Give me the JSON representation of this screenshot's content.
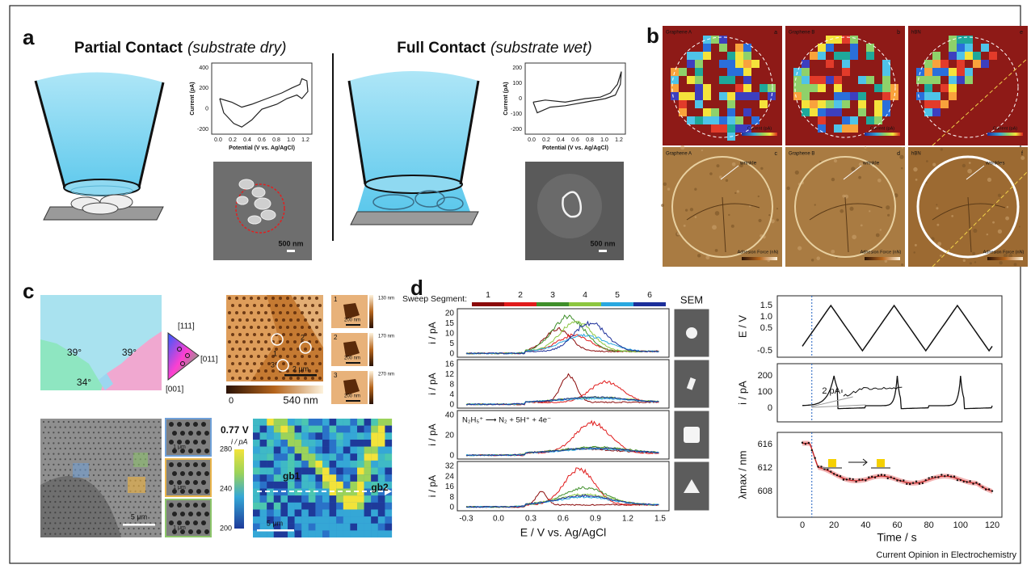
{
  "panel_a": {
    "label": "a",
    "partial_title": "Partial Contact",
    "partial_note": "(substrate dry)",
    "full_title": "Full Contact",
    "full_note": "(substrate wet)",
    "cv_ylabel": "Current (pA)",
    "cv_xlabel": "Potential (V vs. Ag/AgCl)",
    "cv_xticks": [
      "0.0",
      "0.2",
      "0.4",
      "0.6",
      "0.8",
      "1.0",
      "1.2"
    ],
    "partial_yticks": [
      "400",
      "200",
      "0",
      "-200"
    ],
    "full_yticks": [
      "200",
      "100",
      "0",
      "-100",
      "-200"
    ],
    "partial_scale": "500 nm",
    "full_scale": "500 nm"
  },
  "panel_b": {
    "label": "b",
    "maps": [
      {
        "title": "Graphene A",
        "letter": "a"
      },
      {
        "title": "Graphene B",
        "letter": "b"
      },
      {
        "title": "hBN",
        "letter": "e"
      }
    ],
    "afm": [
      {
        "title": "Graphene A",
        "letter": "c",
        "note": "wrinkle"
      },
      {
        "title": "Graphene B",
        "letter": "d",
        "note": "wrinkle"
      },
      {
        "title": "hBN",
        "letter": "f",
        "note": "wrinkles"
      }
    ],
    "current_label": "Current (pA)",
    "adhesion_label": "Adhesion Force (nN)"
  },
  "panel_c": {
    "label": "c",
    "angles": [
      "39°",
      "39°",
      "34°"
    ],
    "orientations": [
      "[111]",
      "[011]",
      "[001]"
    ],
    "afm_markers": [
      "1",
      "2",
      "3"
    ],
    "afm_scale": "2 μm",
    "afm_cbar": [
      "0",
      "540 nm"
    ],
    "insets": [
      {
        "label": "1",
        "scale": "200 nm",
        "cbar": "130 nm"
      },
      {
        "label": "2",
        "scale": "200 nm",
        "cbar": "170 nm"
      },
      {
        "label": "3",
        "scale": "200 nm",
        "cbar": "270 nm"
      }
    ],
    "sem_scale": "5 μm",
    "sem_insets": [
      "1 μm",
      "1 μm",
      "1 μm"
    ],
    "map_potential": "0.77 V",
    "map_unit": "i / pA",
    "map_cbar": [
      "280",
      "240",
      "200"
    ],
    "map_labels": [
      "gb1",
      "gb2"
    ],
    "map_scale": "5 μm"
  },
  "panel_d": {
    "label": "d",
    "sweep_label": "Sweep Segment:",
    "segments": [
      {
        "name": "1",
        "color": "#8b0a0a"
      },
      {
        "name": "2",
        "color": "#e01b1b"
      },
      {
        "name": "3",
        "color": "#3f8f2a"
      },
      {
        "name": "4",
        "color": "#8cc63f"
      },
      {
        "name": "5",
        "color": "#29a8e0"
      },
      {
        "name": "6",
        "color": "#1c2f9a"
      }
    ],
    "ylabel": "i / pA",
    "plots": [
      {
        "yticks": [
          "20",
          "15",
          "10",
          "5",
          "0"
        ]
      },
      {
        "yticks": [
          "16",
          "12",
          "8",
          "4",
          "0"
        ]
      },
      {
        "yticks": [
          "40",
          "20",
          "0"
        ],
        "annotation": "N₂H₅⁺ ⟶ N₂ + 5H⁺ + 4e⁻"
      },
      {
        "yticks": [
          "32",
          "24",
          "16",
          "8",
          "0"
        ]
      }
    ],
    "xticks": [
      "-0.3",
      "0.0",
      "0.3",
      "0.6",
      "0.9",
      "1.2",
      "1.5"
    ],
    "xlabel": "E / V vs. Ag/AgCl",
    "sem_title": "SEM",
    "e_ylabel": "E / V",
    "e_yticks": [
      "1.5",
      "1.0",
      "0.5",
      "-0.5"
    ],
    "i_ylabel": "i / pA",
    "i_yticks": [
      "200",
      "100",
      "0"
    ],
    "i_inset": "2 pA",
    "l_ylabel": "λmax / nm",
    "l_yticks": [
      "616",
      "612",
      "608"
    ],
    "t_xticks": [
      "0",
      "20",
      "40",
      "60",
      "80",
      "100",
      "120"
    ],
    "t_xlabel": "Time / s"
  },
  "footer": "Current Opinion in Electrochemistry"
}
